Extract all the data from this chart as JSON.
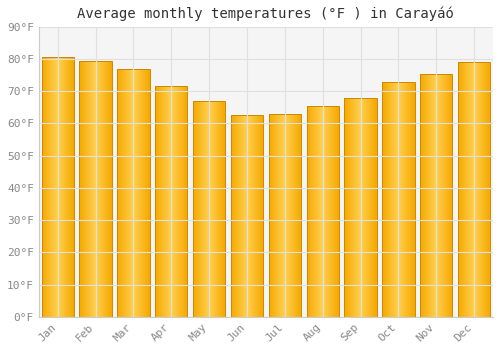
{
  "title": "Average monthly temperatures (°F ) in Carayáó",
  "months": [
    "Jan",
    "Feb",
    "Mar",
    "Apr",
    "May",
    "Jun",
    "Jul",
    "Aug",
    "Sep",
    "Oct",
    "Nov",
    "Dec"
  ],
  "values": [
    80.5,
    79.5,
    77,
    71.5,
    67,
    62.5,
    63,
    65.5,
    68,
    73,
    75.5,
    79
  ],
  "bar_color_left": "#F5A800",
  "bar_color_center": "#FFD050",
  "bar_color_right": "#F5A800",
  "bar_edge_color": "#CC8800",
  "ylim": [
    0,
    90
  ],
  "yticks": [
    0,
    10,
    20,
    30,
    40,
    50,
    60,
    70,
    80,
    90
  ],
  "ytick_labels": [
    "0°F",
    "10°F",
    "20°F",
    "30°F",
    "40°F",
    "50°F",
    "60°F",
    "70°F",
    "80°F",
    "90°F"
  ],
  "background_color": "#FFFFFF",
  "plot_bg_color": "#F5F5F5",
  "grid_color": "#E0E0E0",
  "title_fontsize": 10,
  "tick_fontsize": 8,
  "tick_color": "#888888",
  "font_family": "DejaVu Sans Mono"
}
